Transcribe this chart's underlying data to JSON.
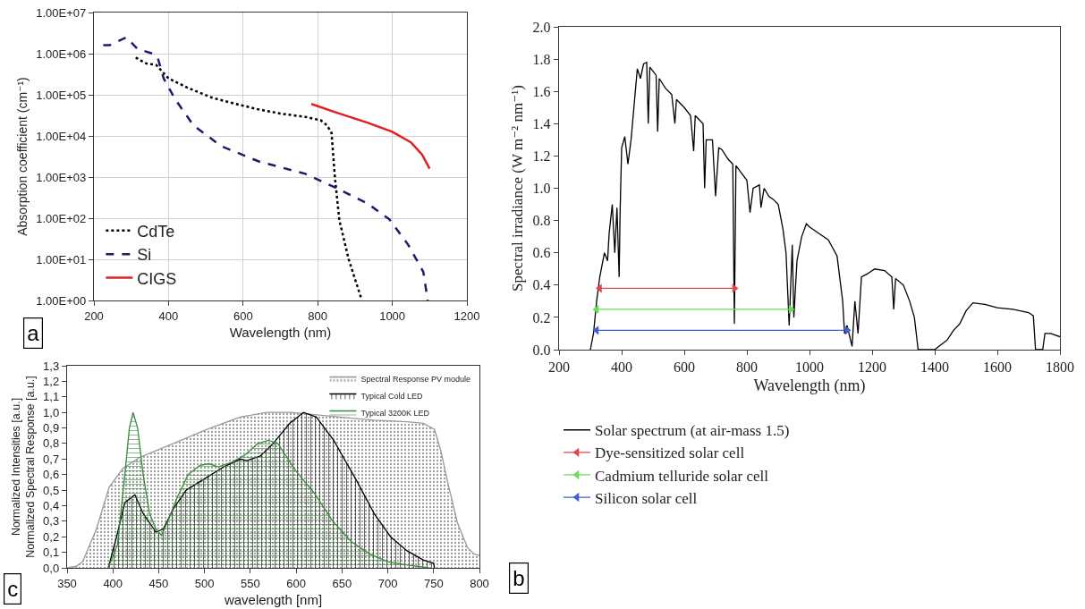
{
  "chart_data": [
    {
      "type": "line",
      "xlabel": "Wavelength (nm)",
      "ylabel": "Absorption coefficient (cm⁻¹)",
      "log": "y",
      "grid": true,
      "legend": "bottom left",
      "xlim": [
        200,
        1200
      ],
      "xticks": [
        200,
        400,
        600,
        800,
        1000,
        1200
      ],
      "ylim": [
        1,
        10000000
      ],
      "yticks": [
        {
          "value": 1,
          "label": "1.00E+00"
        },
        {
          "value": 10,
          "label": "1.00E+01"
        },
        {
          "value": 100,
          "label": "1.00E+02"
        },
        {
          "value": 1000,
          "label": "1.00E+03"
        },
        {
          "value": 10000,
          "label": "1.00E+04"
        },
        {
          "value": 100000,
          "label": "1.00E+05"
        },
        {
          "value": 1000000,
          "label": "1.00E+06"
        },
        {
          "value": 10000000,
          "label": "1.00E+07"
        }
      ],
      "annotations": [
        "a"
      ],
      "series": [
        {
          "name": "CdTe",
          "color": "#000000",
          "line_style": "dotted",
          "x": [
            312,
            340,
            367,
            400,
            450,
            517,
            580,
            642,
            700,
            767,
            808,
            825,
            837,
            846,
            858,
            883,
            917
          ],
          "values": [
            800000,
            580000,
            530000,
            250000,
            150000,
            85000,
            60000,
            44000,
            35000,
            29000,
            24000,
            18000,
            12000,
            1000,
            90,
            10,
            1.1
          ]
        },
        {
          "name": "Si",
          "color": "#1c1c6b",
          "line_style": "dashed",
          "x": [
            225,
            242,
            287,
            317,
            358,
            371,
            387,
            417,
            467,
            542,
            642,
            767,
            850,
            933,
            992,
            1042,
            1083,
            1095
          ],
          "values": [
            1600000,
            1600000,
            2500000,
            1300000,
            1000000,
            800000,
            250000,
            80000,
            18000,
            5600,
            2400,
            1200,
            540,
            230,
            94,
            23,
            5,
            1
          ]
        },
        {
          "name": "CIGS",
          "color": "#e02020",
          "line_style": "solid",
          "x": [
            783,
            850,
            933,
            1000,
            1050,
            1080,
            1100
          ],
          "values": [
            60000,
            37000,
            21000,
            12600,
            7000,
            3500,
            1600
          ]
        }
      ]
    },
    {
      "type": "line",
      "xlabel": "Wavelength (nm)",
      "ylabel": "Spectral irradiance (W m⁻² nm⁻¹)",
      "grid": false,
      "legend": "bottom",
      "xlim": [
        200,
        1800
      ],
      "xticks": [
        200,
        400,
        600,
        800,
        1000,
        1200,
        1400,
        1600,
        1800
      ],
      "ylim": [
        0,
        2.0
      ],
      "yticks": [
        {
          "value": 0,
          "label": "0.0"
        },
        {
          "value": 0.2,
          "label": "0.2"
        },
        {
          "value": 0.4,
          "label": "0.4"
        },
        {
          "value": 0.6,
          "label": "0.6"
        },
        {
          "value": 0.8,
          "label": "0.8"
        },
        {
          "value": 1,
          "label": "1.0"
        },
        {
          "value": 1.2,
          "label": "1.2"
        },
        {
          "value": 1.4,
          "label": "1.4"
        },
        {
          "value": 1.6,
          "label": "1.6"
        },
        {
          "value": 1.8,
          "label": "1.8"
        },
        {
          "value": 2,
          "label": "2.0"
        }
      ],
      "annotations": [
        "b"
      ],
      "series": [
        {
          "name": "Solar spectrum (at air-mass 1.5)",
          "color": "#000000",
          "x": [
            300,
            310,
            320,
            330,
            345,
            355,
            360,
            370,
            378,
            385,
            392,
            395,
            400,
            410,
            420,
            430,
            440,
            450,
            460,
            470,
            480,
            485,
            490,
            510,
            515,
            520,
            540,
            560,
            570,
            575,
            600,
            620,
            630,
            635,
            660,
            665,
            670,
            690,
            700,
            710,
            720,
            740,
            755,
            760,
            765,
            780,
            800,
            810,
            820,
            840,
            845,
            855,
            870,
            885,
            900,
            915,
            925,
            935,
            945,
            950,
            960,
            975,
            990,
            1000,
            1030,
            1060,
            1088,
            1106,
            1112,
            1120,
            1136,
            1145,
            1155,
            1166,
            1185,
            1208,
            1240,
            1263,
            1269,
            1275,
            1300,
            1320,
            1335,
            1347,
            1400,
            1420,
            1440,
            1460,
            1480,
            1500,
            1522,
            1560,
            1600,
            1650,
            1700,
            1715,
            1722,
            1745,
            1752,
            1770,
            1800
          ],
          "values": [
            0,
            0.1,
            0.3,
            0.45,
            0.6,
            0.55,
            0.72,
            0.9,
            0.6,
            0.88,
            0.45,
            0.85,
            1.25,
            1.32,
            1.15,
            1.3,
            1.52,
            1.74,
            1.68,
            1.77,
            1.78,
            1.4,
            1.75,
            1.7,
            1.35,
            1.68,
            1.62,
            1.58,
            1.4,
            1.55,
            1.5,
            1.45,
            1.23,
            1.45,
            1.4,
            1.0,
            1.3,
            1.3,
            0.95,
            1.25,
            1.24,
            1.18,
            1.15,
            0.16,
            1.14,
            1.1,
            1.05,
            0.85,
            1.0,
            1.02,
            0.88,
            1.0,
            0.95,
            0.93,
            0.9,
            0.75,
            0.6,
            0.15,
            0.65,
            0.2,
            0.55,
            0.7,
            0.78,
            0.76,
            0.72,
            0.68,
            0.58,
            0.3,
            0.1,
            0.15,
            0.02,
            0.3,
            0.1,
            0.45,
            0.47,
            0.5,
            0.49,
            0.45,
            0.25,
            0.44,
            0.4,
            0.3,
            0.2,
            0.0,
            0.0,
            0.03,
            0.06,
            0.12,
            0.16,
            0.24,
            0.29,
            0.28,
            0.26,
            0.25,
            0.23,
            0.21,
            0.0,
            0.0,
            0.1,
            0.1,
            0.08
          ]
        },
        {
          "name": "Dye-sensitized solar cell",
          "color": "#e04848",
          "marker": "triangle",
          "x": [
            330,
            760
          ],
          "values": [
            0.38,
            0.38
          ]
        },
        {
          "name": "Cadmium telluride solar cell",
          "color": "#66dd55",
          "marker": "triangle",
          "x": [
            320,
            940
          ],
          "values": [
            0.25,
            0.25
          ]
        },
        {
          "name": "Silicon solar cell",
          "color": "#4060d0",
          "marker": "triangle",
          "x": [
            320,
            1120
          ],
          "values": [
            0.12,
            0.12
          ]
        }
      ]
    },
    {
      "type": "area",
      "xlabel": "wavelength [nm]",
      "ylabel": "Normalized Intensities [a.u.]\nNormalized Spectral Response [a.u.]",
      "grid": false,
      "legend": "top right",
      "xlim": [
        350,
        800
      ],
      "xticks": [
        350,
        400,
        450,
        500,
        550,
        600,
        650,
        700,
        750,
        800
      ],
      "ylim": [
        0,
        1.3
      ],
      "yticks": [
        {
          "value": 0,
          "label": "0,0"
        },
        {
          "value": 0.1,
          "label": "0,1"
        },
        {
          "value": 0.2,
          "label": "0,2"
        },
        {
          "value": 0.3,
          "label": "0,3"
        },
        {
          "value": 0.4,
          "label": "0,4"
        },
        {
          "value": 0.5,
          "label": "0,5"
        },
        {
          "value": 0.6,
          "label": "0,6"
        },
        {
          "value": 0.7,
          "label": "0,7"
        },
        {
          "value": 0.8,
          "label": "0,8"
        },
        {
          "value": 0.9,
          "label": "0,9"
        },
        {
          "value": 1,
          "label": "1,0"
        },
        {
          "value": 1.1,
          "label": "1,1"
        },
        {
          "value": 1.2,
          "label": "1,2"
        },
        {
          "value": 1.3,
          "label": "1,3"
        }
      ],
      "annotations": [
        "c"
      ],
      "series": [
        {
          "name": "Spectral Response PV module",
          "color": "#9a9a9a",
          "x": [
            350,
            360,
            367,
            382,
            396,
            411,
            429,
            466,
            502,
            539,
            568,
            593,
            612,
            648,
            685,
            721,
            739,
            751,
            758,
            765,
            776,
            787,
            794,
            800
          ],
          "values": [
            0,
            0.01,
            0.04,
            0.25,
            0.52,
            0.64,
            0.71,
            0.8,
            0.89,
            0.97,
            1.0,
            1.0,
            0.99,
            0.97,
            0.95,
            0.94,
            0.93,
            0.89,
            0.75,
            0.56,
            0.29,
            0.13,
            0.09,
            0.08
          ]
        },
        {
          "name": "Typical Cold LED",
          "color": "#000000",
          "x": [
            395,
            404,
            413,
            424,
            433,
            447,
            455,
            466,
            480,
            502,
            521,
            539,
            546,
            561,
            575,
            593,
            608,
            622,
            641,
            667,
            685,
            703,
            721,
            739,
            750,
            751
          ],
          "values": [
            0,
            0.2,
            0.42,
            0.47,
            0.35,
            0.23,
            0.25,
            0.38,
            0.5,
            0.58,
            0.65,
            0.7,
            0.69,
            0.72,
            0.8,
            0.93,
            1.0,
            0.97,
            0.82,
            0.55,
            0.35,
            0.2,
            0.11,
            0.05,
            0.03,
            0
          ]
        },
        {
          "name": "Typical 3200K LED",
          "color": "#3a8a3a",
          "x": [
            395,
            405,
            413,
            418,
            422,
            427,
            433,
            440,
            447,
            453,
            460,
            470,
            482,
            495,
            505,
            515,
            530,
            545,
            558,
            570,
            580,
            600,
            620,
            640,
            660,
            680,
            700,
            720,
            745
          ],
          "values": [
            0,
            0.15,
            0.6,
            0.9,
            1.0,
            0.9,
            0.6,
            0.35,
            0.25,
            0.21,
            0.3,
            0.45,
            0.6,
            0.66,
            0.67,
            0.65,
            0.68,
            0.73,
            0.8,
            0.82,
            0.8,
            0.62,
            0.48,
            0.3,
            0.17,
            0.09,
            0.04,
            0.02,
            0
          ]
        }
      ]
    }
  ]
}
